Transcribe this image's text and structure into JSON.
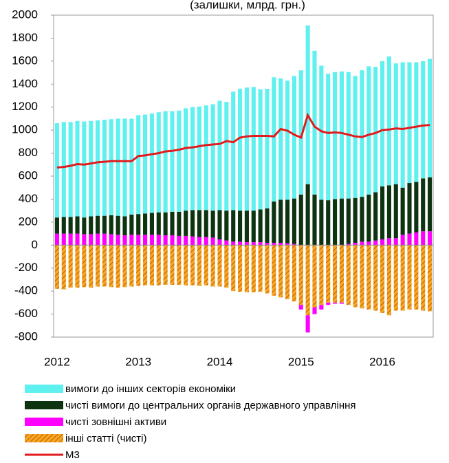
{
  "chart_data": {
    "type": "bar",
    "stacked": true,
    "subtitle": "(залишки, млрд. грн.)",
    "categories": [
      "2012",
      null,
      null,
      null,
      null,
      null,
      null,
      null,
      null,
      null,
      null,
      null,
      "2013",
      null,
      null,
      null,
      null,
      null,
      null,
      null,
      null,
      null,
      null,
      null,
      "2014",
      null,
      null,
      null,
      null,
      null,
      null,
      null,
      null,
      null,
      null,
      null,
      "2015",
      null,
      null,
      null,
      null,
      null,
      null,
      null,
      null,
      null,
      null,
      null,
      "2016",
      null,
      null,
      null,
      null,
      null,
      null,
      null
    ],
    "ylim": [
      -800,
      2000
    ],
    "yticks": [
      -800,
      -600,
      -400,
      -200,
      0,
      200,
      400,
      600,
      800,
      1000,
      1200,
      1400,
      1600,
      1800,
      2000
    ],
    "series": [
      {
        "name": "вимоги до інших секторів економіки",
        "color": "#5ff0f0",
        "type": "bar",
        "values": [
          820,
          825,
          825,
          830,
          835,
          830,
          830,
          835,
          835,
          845,
          850,
          835,
          860,
          860,
          865,
          870,
          880,
          875,
          880,
          890,
          895,
          900,
          910,
          925,
          950,
          945,
          1030,
          1060,
          1070,
          1075,
          1045,
          1040,
          1080,
          1055,
          1035,
          1065,
          1080,
          1380,
          1250,
          1165,
          1100,
          1105,
          1105,
          1100,
          1060,
          1100,
          1115,
          1090,
          1090,
          1120,
          1050,
          1090,
          1050,
          1040,
          1020,
          1030
        ]
      },
      {
        "name": "чисті вимоги до центральних органів державного управління",
        "color": "#0d3311",
        "type": "bar",
        "values": [
          140,
          145,
          145,
          150,
          145,
          155,
          155,
          155,
          165,
          165,
          165,
          175,
          180,
          185,
          190,
          195,
          200,
          205,
          210,
          220,
          230,
          235,
          235,
          235,
          255,
          260,
          275,
          270,
          275,
          275,
          285,
          300,
          360,
          375,
          380,
          395,
          440,
          530,
          440,
          395,
          390,
          400,
          405,
          395,
          390,
          390,
          410,
          420,
          460,
          460,
          470,
          410,
          440,
          440,
          460,
          470
        ]
      },
      {
        "name": "чисті зовнішні активи",
        "color": "#ff00ff",
        "type": "bar",
        "values": [
          100,
          100,
          100,
          100,
          95,
          95,
          100,
          100,
          95,
          90,
          85,
          90,
          90,
          90,
          90,
          90,
          85,
          85,
          80,
          80,
          75,
          70,
          70,
          65,
          50,
          40,
          30,
          30,
          25,
          25,
          25,
          20,
          20,
          20,
          15,
          10,
          -40,
          -150,
          -60,
          -40,
          -20,
          -10,
          -10,
          10,
          20,
          30,
          30,
          40,
          50,
          60,
          60,
          90,
          100,
          110,
          120,
          120
        ]
      },
      {
        "name": "інші статті (чисті)",
        "color": "#f5a623",
        "type": "bar",
        "pattern": "hatch",
        "values": [
          -380,
          -385,
          -370,
          -370,
          -365,
          -370,
          -360,
          -360,
          -365,
          -370,
          -365,
          -360,
          -355,
          -350,
          -350,
          -350,
          -345,
          -345,
          -345,
          -350,
          -350,
          -355,
          -350,
          -360,
          -360,
          -370,
          -400,
          -405,
          -410,
          -410,
          -405,
          -420,
          -440,
          -455,
          -470,
          -490,
          -520,
          -610,
          -540,
          -520,
          -500,
          -500,
          -500,
          -520,
          -540,
          -550,
          -560,
          -570,
          -590,
          -610,
          -570,
          -570,
          -560,
          -560,
          -570,
          -575
        ]
      },
      {
        "name": "М3",
        "color": "#e31a1c",
        "type": "line",
        "values": [
          675,
          680,
          690,
          705,
          700,
          710,
          720,
          725,
          730,
          730,
          730,
          730,
          775,
          780,
          790,
          800,
          815,
          820,
          830,
          845,
          850,
          860,
          870,
          875,
          880,
          905,
          895,
          935,
          945,
          950,
          950,
          950,
          945,
          1010,
          995,
          960,
          935,
          1130,
          1030,
          990,
          975,
          980,
          975,
          960,
          945,
          940,
          960,
          975,
          1000,
          1005,
          1015,
          1010,
          1020,
          1030,
          1040,
          1045
        ]
      }
    ]
  }
}
